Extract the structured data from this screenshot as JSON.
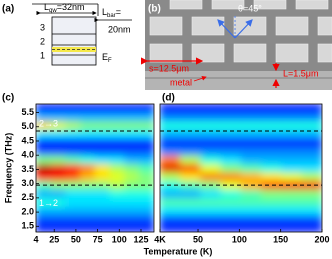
{
  "panel_a": {
    "label": "(a)",
    "well_width": {
      "symbol": "L",
      "sub": "qw",
      "text": "=32nm"
    },
    "barrier_width": {
      "symbol": "L",
      "sub": "bar",
      "text": "=",
      "value": "20nm"
    },
    "levels": [
      "3",
      "2",
      "1"
    ],
    "fermi": {
      "symbol": "E",
      "sub": "F"
    }
  },
  "panel_b": {
    "label": "(b)",
    "angle": "θ=45°",
    "period": "s=12.5μm",
    "metal": "metal",
    "length": "L=1.5μm"
  },
  "xlabel": "Temperature (K)",
  "chart_data": [
    {
      "type": "heatmap",
      "panel_label": "(c)",
      "ylabel": "Frequency (THz)",
      "colormap": "jet",
      "xlim": [
        4,
        140
      ],
      "ylim": [
        1.3,
        5.8
      ],
      "xticks": [
        4,
        25,
        50,
        75,
        100,
        125
      ],
      "yticks": [
        1.5,
        {
          "value": 2,
          "label": "2.0"
        },
        2.5,
        {
          "value": 3,
          "label": "3.0"
        },
        3.5,
        {
          "value": 4,
          "label": "4.0"
        },
        4.5,
        {
          "value": 5,
          "label": "5.0"
        },
        5.5
      ],
      "hlines": [
        4.85,
        2.95
      ],
      "annotations": [
        "2→3",
        "1→2"
      ],
      "xbins": [
        4,
        21,
        38,
        55,
        72,
        89,
        106,
        123,
        140
      ],
      "ybins": [
        1.3,
        1.6,
        1.9,
        2.2,
        2.5,
        2.8,
        3.1,
        3.4,
        3.7,
        4.0,
        4.3,
        4.6,
        4.9,
        5.2,
        5.5,
        5.8
      ],
      "z": [
        [
          0.15,
          0.15,
          0.15,
          0.15,
          0.15,
          0.15,
          0.15,
          0.15
        ],
        [
          0.2,
          0.2,
          0.2,
          0.2,
          0.2,
          0.2,
          0.2,
          0.2
        ],
        [
          0.3,
          0.3,
          0.3,
          0.3,
          0.3,
          0.3,
          0.3,
          0.3
        ],
        [
          0.4,
          0.4,
          0.35,
          0.35,
          0.35,
          0.35,
          0.35,
          0.35
        ],
        [
          0.3,
          0.3,
          0.35,
          0.35,
          0.35,
          0.4,
          0.4,
          0.4
        ],
        [
          0.45,
          0.5,
          0.5,
          0.5,
          0.5,
          0.55,
          0.5,
          0.5
        ],
        [
          0.85,
          0.85,
          0.8,
          0.7,
          0.65,
          0.6,
          0.55,
          0.5
        ],
        [
          0.95,
          0.9,
          0.85,
          0.75,
          0.65,
          0.55,
          0.5,
          0.45
        ],
        [
          0.5,
          0.5,
          0.45,
          0.4,
          0.35,
          0.35,
          0.3,
          0.3
        ],
        [
          0.2,
          0.2,
          0.2,
          0.2,
          0.2,
          0.2,
          0.2,
          0.2
        ],
        [
          0.15,
          0.15,
          0.15,
          0.15,
          0.15,
          0.15,
          0.15,
          0.15
        ],
        [
          0.35,
          0.35,
          0.35,
          0.35,
          0.35,
          0.35,
          0.35,
          0.35
        ],
        [
          0.65,
          0.6,
          0.55,
          0.5,
          0.5,
          0.5,
          0.5,
          0.5
        ],
        [
          0.3,
          0.3,
          0.3,
          0.3,
          0.3,
          0.3,
          0.3,
          0.3
        ],
        [
          0.15,
          0.15,
          0.15,
          0.15,
          0.15,
          0.15,
          0.15,
          0.15
        ]
      ]
    },
    {
      "type": "heatmap",
      "panel_label": "(d)",
      "colormap": "jet",
      "xlim": [
        4,
        200
      ],
      "ylim": [
        1.3,
        5.8
      ],
      "xticks": [
        {
          "value": 4,
          "label": "4K"
        },
        50,
        100,
        150,
        200
      ],
      "hlines": [
        4.85,
        2.95
      ],
      "xbins": [
        4,
        28.5,
        53,
        77.5,
        102,
        126.5,
        151,
        175.5,
        200
      ],
      "ybins": [
        1.3,
        1.6,
        1.9,
        2.2,
        2.5,
        2.8,
        3.1,
        3.4,
        3.7,
        4.0,
        4.3,
        4.6,
        4.9,
        5.2,
        5.5,
        5.8
      ],
      "z": [
        [
          0.15,
          0.15,
          0.15,
          0.15,
          0.15,
          0.15,
          0.15,
          0.15
        ],
        [
          0.2,
          0.2,
          0.2,
          0.2,
          0.2,
          0.2,
          0.2,
          0.2
        ],
        [
          0.35,
          0.35,
          0.35,
          0.35,
          0.35,
          0.35,
          0.35,
          0.35
        ],
        [
          0.45,
          0.45,
          0.45,
          0.45,
          0.45,
          0.45,
          0.45,
          0.45
        ],
        [
          0.3,
          0.3,
          0.35,
          0.4,
          0.45,
          0.5,
          0.5,
          0.5
        ],
        [
          0.4,
          0.45,
          0.5,
          0.6,
          0.7,
          0.8,
          0.85,
          0.85
        ],
        [
          0.55,
          0.65,
          0.75,
          0.75,
          0.7,
          0.65,
          0.6,
          0.55
        ],
        [
          0.9,
          0.8,
          0.6,
          0.5,
          0.45,
          0.4,
          0.35,
          0.35
        ],
        [
          0.75,
          0.55,
          0.4,
          0.35,
          0.3,
          0.3,
          0.3,
          0.3
        ],
        [
          0.25,
          0.25,
          0.25,
          0.25,
          0.25,
          0.25,
          0.25,
          0.25
        ],
        [
          0.15,
          0.15,
          0.15,
          0.15,
          0.15,
          0.15,
          0.15,
          0.15
        ],
        [
          0.3,
          0.3,
          0.3,
          0.3,
          0.3,
          0.3,
          0.3,
          0.3
        ],
        [
          0.4,
          0.4,
          0.4,
          0.4,
          0.4,
          0.4,
          0.4,
          0.4
        ],
        [
          0.25,
          0.25,
          0.25,
          0.25,
          0.25,
          0.25,
          0.25,
          0.25
        ],
        [
          0.15,
          0.15,
          0.15,
          0.15,
          0.15,
          0.15,
          0.15,
          0.15
        ]
      ]
    }
  ]
}
